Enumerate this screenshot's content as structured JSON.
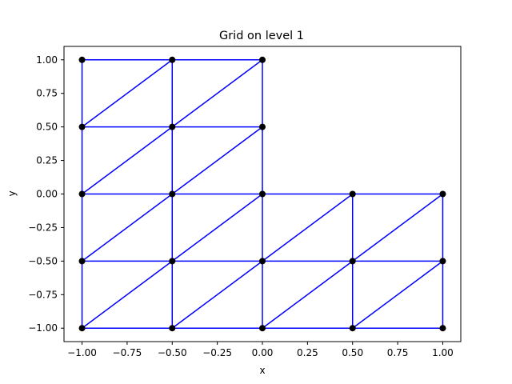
{
  "chart_data": {
    "type": "scatter",
    "title": "Grid on level 1",
    "xlabel": "x",
    "ylabel": "y",
    "xlim": [
      -1.1,
      1.1
    ],
    "ylim": [
      -1.1,
      1.1
    ],
    "xticks": [
      -1.0,
      -0.75,
      -0.5,
      -0.25,
      0.0,
      0.25,
      0.5,
      0.75,
      1.0
    ],
    "yticks": [
      -1.0,
      -0.75,
      -0.5,
      -0.25,
      0.0,
      0.25,
      0.5,
      0.75,
      1.0
    ],
    "xtick_labels": [
      "−1.00",
      "−0.75",
      "−0.50",
      "−0.25",
      "0.00",
      "0.25",
      "0.50",
      "0.75",
      "1.00"
    ],
    "ytick_labels": [
      "−1.00",
      "−0.75",
      "−0.50",
      "−0.25",
      "0.00",
      "0.25",
      "0.50",
      "0.75",
      "1.00"
    ],
    "grid": false,
    "edge_color": "#0000ff",
    "node_color": "#000000",
    "nodes": [
      [
        -1.0,
        1.0
      ],
      [
        -0.5,
        1.0
      ],
      [
        0.0,
        1.0
      ],
      [
        -1.0,
        0.5
      ],
      [
        -0.5,
        0.5
      ],
      [
        0.0,
        0.5
      ],
      [
        -1.0,
        0.0
      ],
      [
        -0.5,
        0.0
      ],
      [
        0.0,
        0.0
      ],
      [
        0.5,
        0.0
      ],
      [
        1.0,
        0.0
      ],
      [
        -1.0,
        -0.5
      ],
      [
        -0.5,
        -0.5
      ],
      [
        0.0,
        -0.5
      ],
      [
        0.5,
        -0.5
      ],
      [
        1.0,
        -0.5
      ],
      [
        -1.0,
        -1.0
      ],
      [
        -0.5,
        -1.0
      ],
      [
        0.0,
        -1.0
      ],
      [
        0.5,
        -1.0
      ],
      [
        1.0,
        -1.0
      ]
    ],
    "edges": [
      [
        [
          -1.0,
          1.0
        ],
        [
          -0.5,
          1.0
        ]
      ],
      [
        [
          -0.5,
          1.0
        ],
        [
          0.0,
          1.0
        ]
      ],
      [
        [
          -1.0,
          0.5
        ],
        [
          -0.5,
          0.5
        ]
      ],
      [
        [
          -0.5,
          0.5
        ],
        [
          0.0,
          0.5
        ]
      ],
      [
        [
          -1.0,
          0.0
        ],
        [
          -0.5,
          0.0
        ]
      ],
      [
        [
          -0.5,
          0.0
        ],
        [
          0.0,
          0.0
        ]
      ],
      [
        [
          0.0,
          0.0
        ],
        [
          0.5,
          0.0
        ]
      ],
      [
        [
          0.5,
          0.0
        ],
        [
          1.0,
          0.0
        ]
      ],
      [
        [
          -1.0,
          -0.5
        ],
        [
          -0.5,
          -0.5
        ]
      ],
      [
        [
          -0.5,
          -0.5
        ],
        [
          0.0,
          -0.5
        ]
      ],
      [
        [
          0.0,
          -0.5
        ],
        [
          0.5,
          -0.5
        ]
      ],
      [
        [
          0.5,
          -0.5
        ],
        [
          1.0,
          -0.5
        ]
      ],
      [
        [
          -1.0,
          -1.0
        ],
        [
          -0.5,
          -1.0
        ]
      ],
      [
        [
          -0.5,
          -1.0
        ],
        [
          0.0,
          -1.0
        ]
      ],
      [
        [
          0.0,
          -1.0
        ],
        [
          0.5,
          -1.0
        ]
      ],
      [
        [
          0.5,
          -1.0
        ],
        [
          1.0,
          -1.0
        ]
      ],
      [
        [
          -1.0,
          1.0
        ],
        [
          -1.0,
          0.5
        ]
      ],
      [
        [
          -1.0,
          0.5
        ],
        [
          -1.0,
          0.0
        ]
      ],
      [
        [
          -1.0,
          0.0
        ],
        [
          -1.0,
          -0.5
        ]
      ],
      [
        [
          -1.0,
          -0.5
        ],
        [
          -1.0,
          -1.0
        ]
      ],
      [
        [
          -0.5,
          1.0
        ],
        [
          -0.5,
          0.5
        ]
      ],
      [
        [
          -0.5,
          0.5
        ],
        [
          -0.5,
          0.0
        ]
      ],
      [
        [
          -0.5,
          0.0
        ],
        [
          -0.5,
          -0.5
        ]
      ],
      [
        [
          -0.5,
          -0.5
        ],
        [
          -0.5,
          -1.0
        ]
      ],
      [
        [
          0.0,
          1.0
        ],
        [
          0.0,
          0.5
        ]
      ],
      [
        [
          0.0,
          0.5
        ],
        [
          0.0,
          0.0
        ]
      ],
      [
        [
          0.0,
          0.0
        ],
        [
          0.0,
          -0.5
        ]
      ],
      [
        [
          0.0,
          -0.5
        ],
        [
          0.0,
          -1.0
        ]
      ],
      [
        [
          0.5,
          0.0
        ],
        [
          0.5,
          -0.5
        ]
      ],
      [
        [
          0.5,
          -0.5
        ],
        [
          0.5,
          -1.0
        ]
      ],
      [
        [
          1.0,
          0.0
        ],
        [
          1.0,
          -0.5
        ]
      ],
      [
        [
          1.0,
          -0.5
        ],
        [
          1.0,
          -1.0
        ]
      ],
      [
        [
          -1.0,
          0.5
        ],
        [
          -0.5,
          1.0
        ]
      ],
      [
        [
          -0.5,
          0.5
        ],
        [
          0.0,
          1.0
        ]
      ],
      [
        [
          -1.0,
          0.0
        ],
        [
          -0.5,
          0.5
        ]
      ],
      [
        [
          -0.5,
          0.0
        ],
        [
          0.0,
          0.5
        ]
      ],
      [
        [
          -1.0,
          -0.5
        ],
        [
          -0.5,
          0.0
        ]
      ],
      [
        [
          -0.5,
          -0.5
        ],
        [
          0.0,
          0.0
        ]
      ],
      [
        [
          0.0,
          -0.5
        ],
        [
          0.5,
          0.0
        ]
      ],
      [
        [
          0.5,
          -0.5
        ],
        [
          1.0,
          0.0
        ]
      ],
      [
        [
          -1.0,
          -1.0
        ],
        [
          -0.5,
          -0.5
        ]
      ],
      [
        [
          -0.5,
          -1.0
        ],
        [
          0.0,
          -0.5
        ]
      ],
      [
        [
          0.0,
          -1.0
        ],
        [
          0.5,
          -0.5
        ]
      ],
      [
        [
          0.5,
          -1.0
        ],
        [
          1.0,
          -0.5
        ]
      ]
    ]
  }
}
